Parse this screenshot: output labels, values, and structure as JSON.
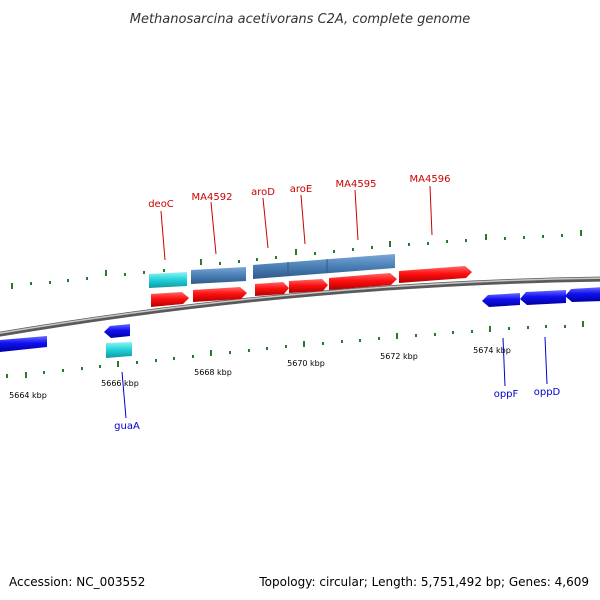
{
  "title": "Methanosarcina acetivorans C2A, complete genome",
  "footer": {
    "accession": "Accession: NC_003552",
    "summary": "Topology: circular; Length: 5,751,492 bp; Genes: 4,609"
  },
  "colors": {
    "forward_label": "#cc0000",
    "reverse_label": "#0000cc",
    "cds_forward": "#ff1a1a",
    "cds_reverse": "#1414e6",
    "gene_forward": "#4a7fb5",
    "gene_cyan": "#20d0d8",
    "tick": "#2a7a2a",
    "backbone": "#8a8a8a"
  },
  "chart_data": {
    "type": "genome_map",
    "position_ticks_kbp": [
      "5664 kbp",
      "5666 kbp",
      "5668 kbp",
      "5670 kbp",
      "5672 kbp",
      "5674 kbp"
    ],
    "forward_genes": [
      "deoC",
      "MA4592",
      "aroD",
      "aroE",
      "MA4595",
      "MA4596"
    ],
    "reverse_genes": [
      "guaA",
      "oppF",
      "oppD"
    ]
  }
}
